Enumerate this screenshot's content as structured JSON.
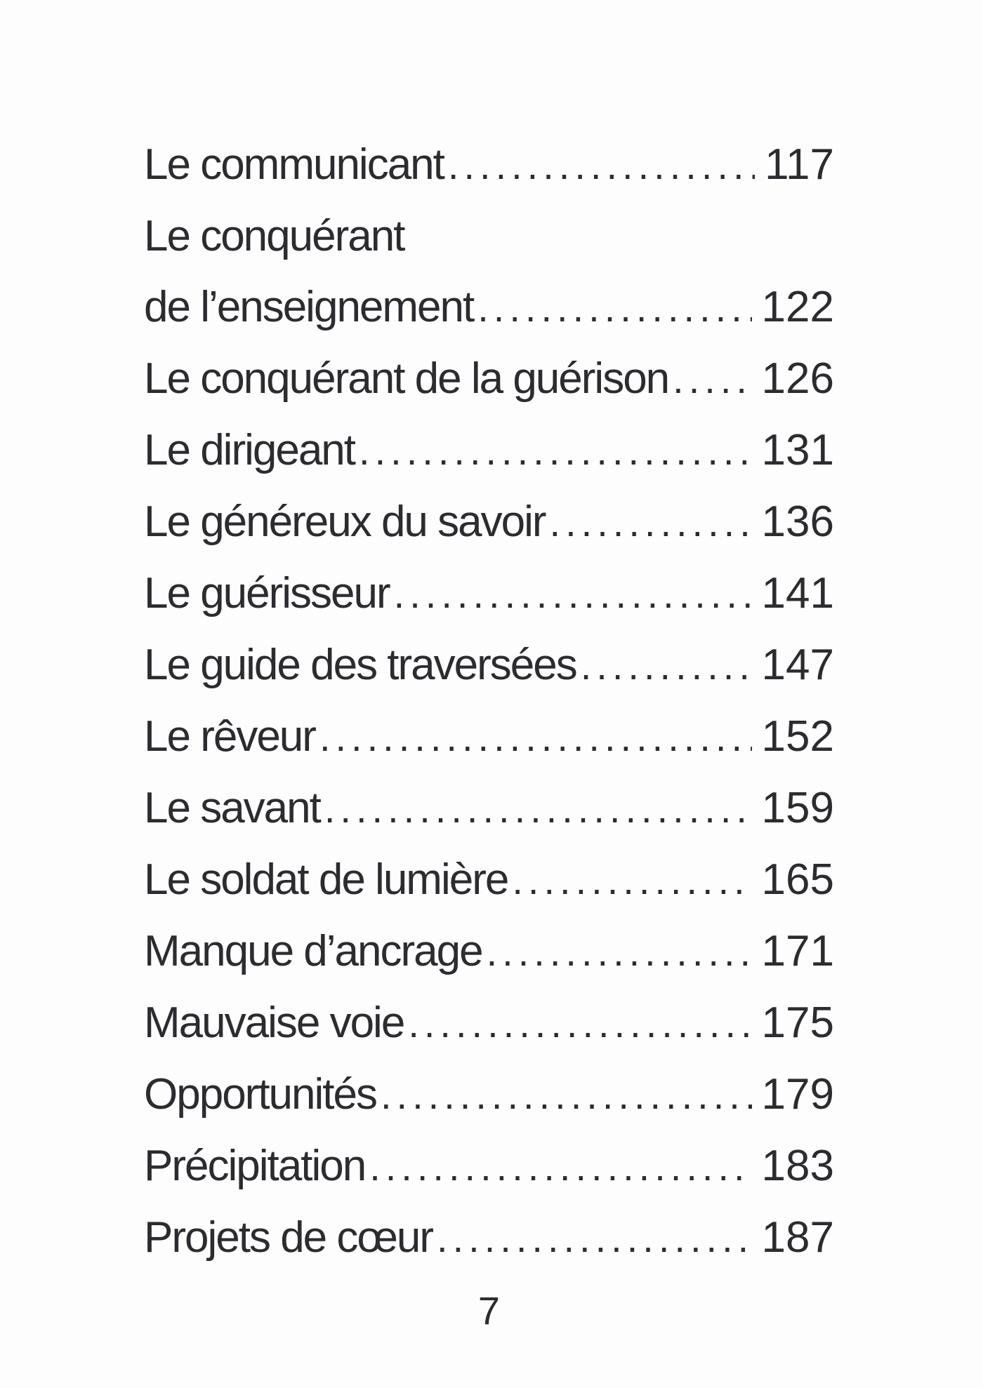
{
  "colors": {
    "background": "#fdfdfd",
    "ink": "#2c2c30"
  },
  "toc": {
    "entries": [
      {
        "label": "Le communicant",
        "page": "117"
      },
      {
        "line1": "Le conquérant",
        "line2": "de l’enseignement",
        "page": "122"
      },
      {
        "label": "Le conquérant de la guérison",
        "page": "126"
      },
      {
        "label": "Le dirigeant",
        "page": "131"
      },
      {
        "label": "Le généreux du savoir",
        "page": "136"
      },
      {
        "label": "Le guérisseur",
        "page": "141"
      },
      {
        "label": "Le guide des traversées",
        "page": "147"
      },
      {
        "label": "Le rêveur",
        "page": "152"
      },
      {
        "label": "Le savant",
        "page": "159"
      },
      {
        "label": "Le soldat de lumière",
        "page": "165"
      },
      {
        "label": "Manque d’ancrage",
        "page": "171"
      },
      {
        "label": "Mauvaise voie",
        "page": "175"
      },
      {
        "label": "Opportunités",
        "page": "179"
      },
      {
        "label": "Précipitation",
        "page": "183"
      },
      {
        "label": "Projets de cœur",
        "page": "187"
      }
    ]
  },
  "page": {
    "folio": "7"
  }
}
